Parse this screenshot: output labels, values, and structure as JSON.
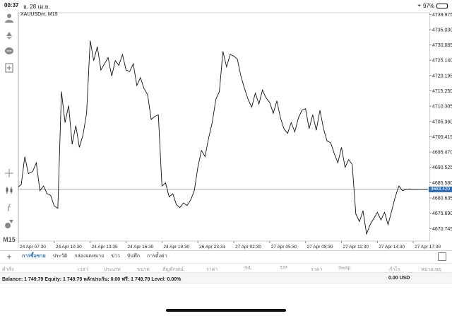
{
  "status_bar": {
    "time": "00:37",
    "date": "อ. 28 เม.ย.",
    "battery": "97%",
    "battery_level": 0.97
  },
  "chart": {
    "symbol_label": "XAUUSDm, M15",
    "current_price": "4683.420"
  },
  "chart_data": {
    "type": "line",
    "title": "",
    "ylabel": "",
    "ylim": [
      4666.7,
      4740.5
    ],
    "y_ticks": [
      "4739.975",
      "4735.030",
      "4730.085",
      "4725.140",
      "4720.195",
      "4715.250",
      "4710.305",
      "4705.360",
      "4700.415",
      "4695.470",
      "4690.525",
      "4685.580",
      "4680.635",
      "4675.690",
      "4670.745"
    ],
    "x_ticks": [
      "24 Apr 07:30",
      "24 Apr 10:30",
      "24 Apr 13:30",
      "24 Apr 16:30",
      "24 Apr 19:30",
      "26 Apr 23:31",
      "27 Apr 02:30",
      "27 Apr 05:30",
      "27 Apr 08:30",
      "27 Apr 11:30",
      "27 Apr 14:30",
      "27 Apr 17:30"
    ],
    "x_range": [
      0,
      11.45
    ],
    "current_price": 4683.42,
    "grid": true,
    "series": [
      {
        "x": [
          0,
          0.08,
          0.18,
          0.28,
          0.4,
          0.5,
          0.6,
          0.7,
          0.8,
          0.9,
          1.0,
          1.1,
          1.2,
          1.3,
          1.4,
          1.5,
          1.6,
          1.7,
          1.8,
          1.9,
          2.0,
          2.1,
          2.2,
          2.3,
          2.4,
          2.5,
          2.6,
          2.7,
          2.8,
          2.9,
          3.0,
          3.1,
          3.2,
          3.3,
          3.4,
          3.5,
          3.6,
          3.7,
          3.8,
          3.9,
          4.0,
          4.1,
          4.2,
          4.3,
          4.4,
          4.5,
          4.6,
          4.7,
          4.8,
          4.9,
          5.0,
          5.1,
          5.2,
          5.3,
          5.4,
          5.5,
          5.6,
          5.7,
          5.8,
          5.9,
          6.0,
          6.1,
          6.2,
          6.3,
          6.4,
          6.5,
          6.6,
          6.7,
          6.8,
          6.9,
          7.0,
          7.1,
          7.2,
          7.3,
          7.4,
          7.5,
          7.6,
          7.7,
          7.8,
          7.9,
          8.0,
          8.1,
          8.2,
          8.3,
          8.4,
          8.5,
          8.6,
          8.7,
          8.8,
          8.9,
          9.0,
          9.1,
          9.2,
          9.3,
          9.4,
          9.5,
          9.6,
          9.7,
          9.8,
          9.9,
          10.0,
          10.1,
          10.2,
          10.3,
          10.4,
          10.5,
          10.6,
          10.7,
          10.8,
          10.9,
          11.0,
          11.1,
          11.2,
          11.3,
          11.4
        ],
        "values": [
          4684.2,
          4685.0,
          4694.0,
          4688.5,
          4689.2,
          4692.0,
          4683.0,
          4684.5,
          4682.0,
          4681.5,
          4678.0,
          4677.3,
          4715.0,
          4705.0,
          4710.5,
          4698.0,
          4704.0,
          4697.0,
          4701.0,
          4708.0,
          4731.5,
          4725.0,
          4729.5,
          4722.0,
          4724.0,
          4726.0,
          4720.0,
          4725.0,
          4723.5,
          4727.0,
          4722.0,
          4721.5,
          4724.0,
          4717.0,
          4719.5,
          4716.0,
          4714.0,
          4706.0,
          4707.0,
          4707.5,
          4684.5,
          4685.5,
          4681.0,
          4682.0,
          4678.5,
          4677.5,
          4679.0,
          4678.2,
          4680.0,
          4683.0,
          4690.5,
          4696.0,
          4694.0,
          4700.0,
          4705.0,
          4712.5,
          4715.0,
          4728.0,
          4723.0,
          4727.0,
          4726.5,
          4725.5,
          4720.0,
          4716.0,
          4712.5,
          4710.0,
          4714.5,
          4711.0,
          4715.5,
          4713.0,
          4711.5,
          4708.0,
          4712.0,
          4706.5,
          4703.0,
          4701.5,
          4705.0,
          4702.0,
          4706.5,
          4709.0,
          4709.5,
          4703.0,
          4707.5,
          4702.5,
          4709.0,
          4703.0,
          4699.0,
          4698.5,
          4695.0,
          4692.0,
          4697.0,
          4690.5,
          4693.0,
          4691.5,
          4675.5,
          4673.0,
          4676.5,
          4669.0,
          4672.0,
          4674.0,
          4676.0,
          4673.5,
          4676.0,
          4672.0,
          4676.5,
          4681.0,
          4684.5,
          4683.0,
          4683.4,
          4683.5,
          4683.4,
          4683.4,
          4683.4,
          4683.4,
          4683.42
        ]
      }
    ]
  },
  "tabs": [
    {
      "label": "การซื้อขาย",
      "active": true
    },
    {
      "label": "ประวัติ",
      "active": false
    },
    {
      "label": "กล่องจดหมาย",
      "active": false
    },
    {
      "label": "ข่าว",
      "active": false
    },
    {
      "label": "บันทึก",
      "active": false
    },
    {
      "label": "การตั้งค่า",
      "active": false
    }
  ],
  "table_header": {
    "columns": [
      "คำสั่ง",
      "เวลา",
      "ประเภท",
      "ขนาด",
      "สัญลักษณ์",
      "ราคา",
      "S/L",
      "T/P",
      "ราคา",
      "Swap",
      "กำไร",
      "หมายเหตุ"
    ]
  },
  "balance": {
    "text": "Balance: 1 749.79 Equity: 1 749.79 หลักประกัน: 0.00 ฟรี: 1 749.79 Level: 0.00%",
    "amount": "0.00  USD"
  },
  "icons": {
    "account": "person-icon",
    "trade": "trade-arrows-icon",
    "chat": "chat-bubble-icon",
    "new_chart": "new-document-icon",
    "crosshair": "crosshair-icon",
    "chart_type": "candlestick-icon",
    "indicators": "function-icon",
    "objects": "shapes-icon",
    "layout": "layout-grid-icon"
  },
  "timeframe": "M15"
}
